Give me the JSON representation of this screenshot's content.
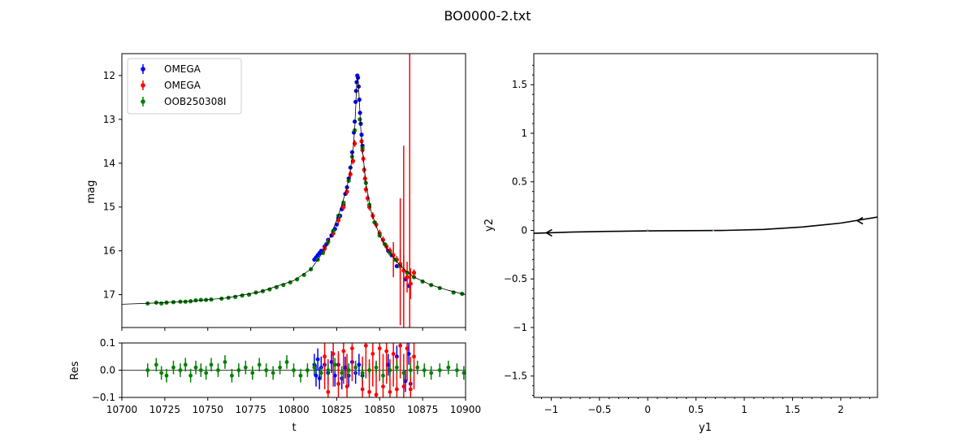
{
  "title": "BO0000-2.txt",
  "chart_data": [
    {
      "type": "scatter",
      "panel": "light-curve",
      "xlim": [
        10700,
        10900
      ],
      "ylim": [
        17.75,
        11.5
      ],
      "y_inverted": true,
      "ylabel": "mag",
      "yticks": [
        12,
        13,
        14,
        15,
        16,
        17
      ],
      "legend_placement": "top-left",
      "grid": false,
      "series": [
        {
          "name": "OMEGA",
          "color": "#0000ff",
          "points": [
            [
              10812,
              16.2
            ],
            [
              10813,
              16.15
            ],
            [
              10814,
              16.1
            ],
            [
              10815,
              16.05
            ],
            [
              10816,
              16.0
            ],
            [
              10818,
              15.9
            ],
            [
              10819,
              15.85
            ],
            [
              10820,
              15.75
            ],
            [
              10822,
              15.65
            ],
            [
              10823,
              15.55
            ],
            [
              10824,
              15.5
            ],
            [
              10825,
              15.4
            ],
            [
              10826,
              15.25
            ],
            [
              10827,
              15.2
            ],
            [
              10828,
              15.05
            ],
            [
              10829,
              14.95
            ],
            [
              10830,
              14.7
            ],
            [
              10831,
              14.55
            ],
            [
              10832,
              14.35
            ],
            [
              10833,
              14.1
            ],
            [
              10834,
              13.75
            ],
            [
              10835,
              13.3
            ],
            [
              10835.5,
              13.05
            ],
            [
              10836,
              12.6
            ],
            [
              10836.3,
              12.35
            ],
            [
              10836.6,
              12.15
            ],
            [
              10837,
              12.0
            ],
            [
              10837.4,
              12.05
            ],
            [
              10837.8,
              12.25
            ],
            [
              10838.2,
              12.55
            ],
            [
              10838.6,
              12.85
            ],
            [
              10839,
              13.1
            ],
            [
              10839.5,
              13.35
            ],
            [
              10840,
              13.6
            ],
            [
              10855,
              16.0
            ],
            [
              10857,
              16.1
            ],
            [
              10860,
              16.35
            ],
            [
              10865,
              16.65
            ],
            [
              10867,
              16.8
            ]
          ],
          "residuals": [
            [
              10812,
              0.02
            ],
            [
              10813,
              -0.02
            ],
            [
              10814,
              0.04
            ],
            [
              10815,
              -0.03
            ],
            [
              10816,
              0.01
            ],
            [
              10818,
              0.02
            ],
            [
              10820,
              -0.01
            ],
            [
              10822,
              0.03
            ],
            [
              10824,
              -0.02
            ],
            [
              10826,
              0.02
            ],
            [
              10828,
              -0.03
            ],
            [
              10830,
              0.01
            ],
            [
              10832,
              -0.02
            ],
            [
              10834,
              0.03
            ],
            [
              10836,
              -0.01
            ],
            [
              10838,
              0.02
            ],
            [
              10840,
              -0.02
            ],
            [
              10855,
              0.02
            ],
            [
              10860,
              0.05
            ],
            [
              10865,
              -0.04
            ],
            [
              10867,
              0.06
            ],
            [
              10868,
              -0.05
            ]
          ]
        },
        {
          "name": "OMEGA",
          "color": "#ff0000",
          "points": [
            [
              10818,
              15.95
            ],
            [
              10820,
              15.8
            ],
            [
              10823,
              15.6
            ],
            [
              10826,
              15.3
            ],
            [
              10829,
              15.0
            ],
            [
              10831,
              14.65
            ],
            [
              10833,
              14.25
            ],
            [
              10834.5,
              13.95
            ],
            [
              10835.5,
              13.55
            ],
            [
              10839.5,
              13.5
            ],
            [
              10840,
              13.7
            ],
            [
              10840.5,
              13.9
            ],
            [
              10841,
              14.15
            ],
            [
              10841.5,
              14.35
            ],
            [
              10842,
              14.6
            ],
            [
              10843,
              14.8
            ],
            [
              10844,
              15.0
            ],
            [
              10846,
              15.2
            ],
            [
              10848,
              15.4
            ],
            [
              10850,
              15.6
            ],
            [
              10852,
              15.75
            ],
            [
              10854,
              15.9
            ],
            [
              10856,
              16.0
            ],
            [
              10858,
              16.1
            ],
            [
              10860,
              16.2
            ],
            [
              10862,
              16.3
            ],
            [
              10864,
              16.45
            ],
            [
              10866,
              16.6
            ],
            [
              10868,
              16.75
            ],
            [
              10870,
              16.5
            ]
          ],
          "residuals": [
            [
              10818,
              0.05
            ],
            [
              10820,
              -0.08
            ],
            [
              10823,
              0.06
            ],
            [
              10826,
              -0.05
            ],
            [
              10829,
              0.07
            ],
            [
              10831,
              -0.06
            ],
            [
              10834,
              0.08
            ],
            [
              10840,
              -0.07
            ],
            [
              10842,
              0.09
            ],
            [
              10844,
              -0.08
            ],
            [
              10846,
              0.06
            ],
            [
              10848,
              -0.09
            ],
            [
              10850,
              0.08
            ],
            [
              10852,
              -0.06
            ],
            [
              10854,
              0.07
            ],
            [
              10856,
              -0.08
            ],
            [
              10858,
              0.06
            ],
            [
              10860,
              -0.07
            ],
            [
              10862,
              0.09
            ],
            [
              10864,
              -0.06
            ],
            [
              10866,
              0.08
            ],
            [
              10868,
              -0.07
            ],
            [
              10870,
              0.05
            ]
          ]
        },
        {
          "name": "OOB250308I",
          "color": "#008000",
          "points": [
            [
              10715,
              17.2
            ],
            [
              10720,
              17.18
            ],
            [
              10723,
              17.2
            ],
            [
              10726,
              17.18
            ],
            [
              10730,
              17.17
            ],
            [
              10734,
              17.16
            ],
            [
              10737,
              17.16
            ],
            [
              10740,
              17.15
            ],
            [
              10743,
              17.13
            ],
            [
              10746,
              17.12
            ],
            [
              10749,
              17.12
            ],
            [
              10752,
              17.11
            ],
            [
              10758,
              17.09
            ],
            [
              10762,
              17.07
            ],
            [
              10766,
              17.05
            ],
            [
              10770,
              17.02
            ],
            [
              10774,
              17.0
            ],
            [
              10778,
              16.95
            ],
            [
              10782,
              16.92
            ],
            [
              10786,
              16.88
            ],
            [
              10790,
              16.83
            ],
            [
              10794,
              16.78
            ],
            [
              10798,
              16.72
            ],
            [
              10802,
              16.65
            ],
            [
              10806,
              16.55
            ],
            [
              10810,
              16.42
            ],
            [
              10814,
              16.2
            ],
            [
              10817,
              16.05
            ],
            [
              10820,
              15.8
            ],
            [
              10823,
              15.55
            ],
            [
              10826,
              15.2
            ],
            [
              10829,
              14.9
            ],
            [
              10832,
              14.4
            ],
            [
              10834,
              13.85
            ],
            [
              10835.5,
              13.25
            ],
            [
              10838.5,
              13.0
            ],
            [
              10840,
              13.65
            ],
            [
              10842,
              14.45
            ],
            [
              10844,
              14.95
            ],
            [
              10847,
              15.35
            ],
            [
              10850,
              15.65
            ],
            [
              10853,
              15.85
            ],
            [
              10856,
              16.05
            ],
            [
              10859,
              16.2
            ],
            [
              10862,
              16.35
            ],
            [
              10866,
              16.5
            ],
            [
              10870,
              16.6
            ],
            [
              10875,
              16.7
            ],
            [
              10880,
              16.78
            ],
            [
              10885,
              16.85
            ],
            [
              10893,
              16.95
            ],
            [
              10898,
              16.98
            ]
          ],
          "residuals": [
            [
              10715,
              0.0
            ],
            [
              10720,
              0.02
            ],
            [
              10723,
              -0.01
            ],
            [
              10726,
              -0.02
            ],
            [
              10730,
              0.01
            ],
            [
              10734,
              0.0
            ],
            [
              10737,
              0.02
            ],
            [
              10740,
              -0.02
            ],
            [
              10743,
              0.01
            ],
            [
              10746,
              0.0
            ],
            [
              10749,
              -0.01
            ],
            [
              10752,
              0.02
            ],
            [
              10756,
              0.0
            ],
            [
              10760,
              0.03
            ],
            [
              10764,
              -0.02
            ],
            [
              10768,
              0.0
            ],
            [
              10772,
              0.01
            ],
            [
              10776,
              -0.01
            ],
            [
              10780,
              0.02
            ],
            [
              10784,
              0.0
            ],
            [
              10788,
              -0.01
            ],
            [
              10792,
              0.01
            ],
            [
              10796,
              0.03
            ],
            [
              10800,
              0.0
            ],
            [
              10804,
              -0.02
            ],
            [
              10808,
              0.0
            ],
            [
              10812,
              0.01
            ],
            [
              10816,
              -0.01
            ],
            [
              10820,
              0.0
            ],
            [
              10824,
              0.02
            ],
            [
              10828,
              -0.01
            ],
            [
              10832,
              0.0
            ],
            [
              10836,
              0.01
            ],
            [
              10840,
              -0.01
            ],
            [
              10844,
              0.0
            ],
            [
              10848,
              0.01
            ],
            [
              10852,
              -0.02
            ],
            [
              10856,
              0.0
            ],
            [
              10860,
              0.01
            ],
            [
              10864,
              -0.01
            ],
            [
              10868,
              0.0
            ],
            [
              10872,
              0.01
            ],
            [
              10876,
              0.0
            ],
            [
              10880,
              -0.01
            ],
            [
              10885,
              0.0
            ],
            [
              10890,
              0.01
            ],
            [
              10895,
              0.0
            ],
            [
              10899,
              -0.01
            ]
          ]
        }
      ],
      "model_curve": [
        [
          10700,
          17.22
        ],
        [
          10720,
          17.19
        ],
        [
          10740,
          17.15
        ],
        [
          10760,
          17.08
        ],
        [
          10780,
          16.94
        ],
        [
          10800,
          16.68
        ],
        [
          10810,
          16.42
        ],
        [
          10815,
          16.15
        ],
        [
          10820,
          15.8
        ],
        [
          10825,
          15.3
        ],
        [
          10828,
          14.95
        ],
        [
          10831,
          14.55
        ],
        [
          10833,
          14.15
        ],
        [
          10834.5,
          13.7
        ],
        [
          10835.5,
          13.2
        ],
        [
          10836.2,
          12.6
        ],
        [
          10836.7,
          12.15
        ],
        [
          10837.1,
          12.02
        ],
        [
          10837.6,
          12.15
        ],
        [
          10838.2,
          12.6
        ],
        [
          10839,
          13.2
        ],
        [
          10840,
          13.7
        ],
        [
          10842,
          14.45
        ],
        [
          10845,
          15.1
        ],
        [
          10850,
          15.65
        ],
        [
          10855,
          15.98
        ],
        [
          10860,
          16.25
        ],
        [
          10865,
          16.45
        ],
        [
          10870,
          16.6
        ],
        [
          10880,
          16.78
        ],
        [
          10890,
          16.9
        ],
        [
          10900,
          17.0
        ]
      ]
    },
    {
      "type": "scatter",
      "panel": "residuals",
      "xlabel": "t",
      "ylabel": "Res",
      "xlim": [
        10700,
        10900
      ],
      "ylim": [
        -0.1,
        0.1
      ],
      "xticks": [
        10700,
        10725,
        10750,
        10775,
        10800,
        10825,
        10850,
        10875,
        10900
      ],
      "yticks": [
        -0.1,
        0.0,
        0.1
      ]
    },
    {
      "type": "line",
      "panel": "source-plane",
      "xlabel": "y1",
      "ylabel": "y2",
      "xlim": [
        -1.18,
        2.38
      ],
      "ylim": [
        -1.72,
        1.82
      ],
      "xticks": [
        -1.0,
        -0.5,
        0.0,
        0.5,
        1.0,
        1.5,
        2.0
      ],
      "yticks": [
        -1.5,
        -1.0,
        -0.5,
        0.0,
        0.5,
        1.0,
        1.5
      ],
      "trajectory": [
        [
          -1.2,
          -0.03
        ],
        [
          -0.8,
          -0.018
        ],
        [
          -0.4,
          -0.01
        ],
        [
          0.0,
          -0.005
        ],
        [
          0.4,
          -0.003
        ],
        [
          0.8,
          0.0
        ],
        [
          1.2,
          0.01
        ],
        [
          1.6,
          0.035
        ],
        [
          2.0,
          0.075
        ],
        [
          2.4,
          0.14
        ]
      ],
      "arrows": [
        [
          -1.05,
          -0.025
        ],
        [
          2.17,
          0.1
        ]
      ],
      "markers": [
        {
          "x": 0.0,
          "y": 0.0,
          "color": "#888888"
        },
        {
          "x": 0.68,
          "y": 0.0,
          "color": "#ff6666"
        }
      ]
    }
  ],
  "legend": {
    "entries": [
      {
        "label": "OMEGA",
        "color": "#0000ff"
      },
      {
        "label": "OMEGA",
        "color": "#ff0000"
      },
      {
        "label": "OOB250308I",
        "color": "#008000"
      }
    ]
  }
}
